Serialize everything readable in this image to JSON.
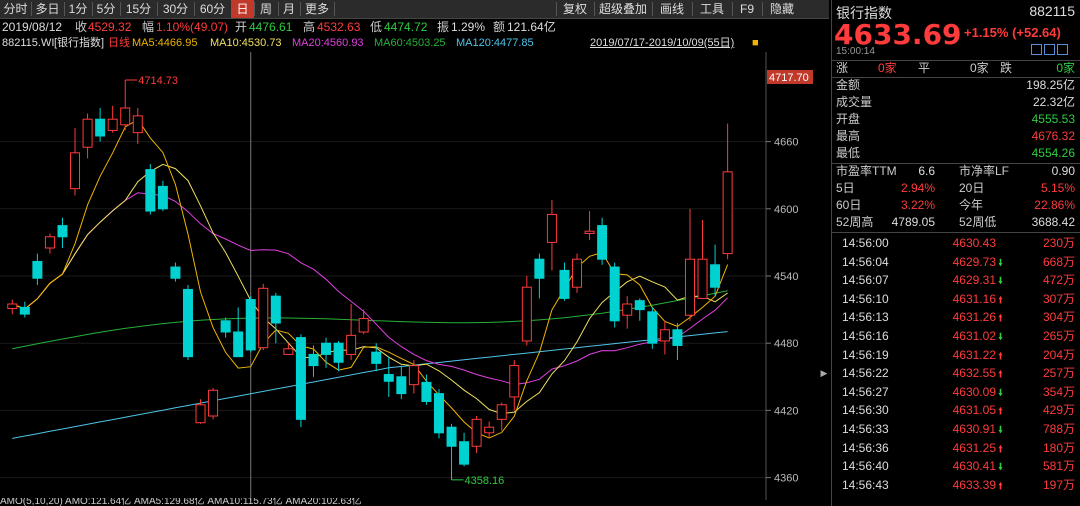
{
  "toolbar": {
    "left": [
      {
        "label": "分时",
        "active": false
      },
      {
        "label": "多日",
        "active": false
      },
      {
        "label": "1分",
        "active": false
      },
      {
        "label": "5分",
        "active": false
      },
      {
        "label": "15分",
        "active": false
      },
      {
        "label": "30分",
        "active": false
      },
      {
        "label": "60分",
        "active": false
      },
      {
        "label": "日",
        "active": true
      },
      {
        "label": "周",
        "active": false
      },
      {
        "label": "月",
        "active": false
      },
      {
        "label": "更多",
        "active": false
      }
    ],
    "right": [
      "复权",
      "超级叠加",
      "画线",
      "工具",
      "F9",
      "隐藏"
    ]
  },
  "info": {
    "date": "2019/08/12",
    "close_label": "收",
    "close": "4529.32",
    "amp_label": "幅",
    "amp": "1.10%(49.07)",
    "open_label": "开",
    "open": "4476.61",
    "high_label": "高",
    "high": "4532.63",
    "low_label": "低",
    "low": "4474.72",
    "swing_label": "振",
    "swing": "1.29%",
    "amount_label": "额",
    "amount": "121.64亿"
  },
  "ma_line": {
    "code": "882115.WI",
    "name": "[银行指数]",
    "period": "日线",
    "ma5": "MA5:4466.95",
    "ma10": "MA10:4530.73",
    "ma20": "MA20:4560.93",
    "ma60": "MA60:4503.25",
    "ma120": "MA120:4477.85",
    "range": "2019/07/17-2019/10/09(55日)"
  },
  "colors": {
    "up": "#ff3b3b",
    "down": "#00d2d2",
    "ma5": "#f0b400",
    "ma10": "#f0e060",
    "ma20": "#e040e0",
    "ma60": "#27b036",
    "ma120": "#4fc3e8",
    "accent": "#c0392b"
  },
  "chart_data": {
    "type": "candlestick",
    "ylim": [
      4340,
      4740
    ],
    "yticks": [
      "4660",
      "4600",
      "4540",
      "4480",
      "4420",
      "4360"
    ],
    "last_price_label": "4717.70",
    "max_label": "4714.73",
    "min_label": "4358.16",
    "candles": [
      [
        4511,
        4515,
        4506,
        4519
      ],
      [
        4512,
        4506,
        4503,
        4517
      ],
      [
        4553,
        4538,
        4532,
        4560
      ],
      [
        4565,
        4575,
        4560,
        4578
      ],
      [
        4585,
        4575,
        4565,
        4592
      ],
      [
        4618,
        4650,
        4612,
        4672
      ],
      [
        4655,
        4680,
        4645,
        4685
      ],
      [
        4680,
        4665,
        4660,
        4690
      ],
      [
        4670,
        4680,
        4668,
        4692
      ],
      [
        4675,
        4690,
        4670,
        4715
      ],
      [
        4668,
        4683,
        4658,
        4690
      ],
      [
        4635,
        4598,
        4595,
        4640
      ],
      [
        4620,
        4600,
        4598,
        4625
      ],
      [
        4548,
        4538,
        4535,
        4552
      ],
      [
        4528,
        4468,
        4465,
        4532
      ],
      [
        4409,
        4425,
        4408,
        4430
      ],
      [
        4415,
        4438,
        4412,
        4440
      ],
      [
        4500,
        4490,
        4485,
        4503
      ],
      [
        4490,
        4468,
        4468,
        4512
      ],
      [
        4519,
        4474,
        4472,
        4522
      ],
      [
        4476,
        4529,
        4474,
        4533
      ],
      [
        4522,
        4498,
        4480,
        4525
      ],
      [
        4470,
        4475,
        4470,
        4480
      ],
      [
        4485,
        4412,
        4405,
        4488
      ],
      [
        4470,
        4460,
        4450,
        4478
      ],
      [
        4480,
        4470,
        4458,
        4485
      ],
      [
        4480,
        4463,
        4455,
        4482
      ],
      [
        4470,
        4487,
        4465,
        4515
      ],
      [
        4490,
        4502,
        4488,
        4510
      ],
      [
        4472,
        4462,
        4455,
        4480
      ],
      [
        4452,
        4446,
        4432,
        4468
      ],
      [
        4450,
        4435,
        4430,
        4460
      ],
      [
        4443,
        4460,
        4435,
        4465
      ],
      [
        4445,
        4428,
        4425,
        4452
      ],
      [
        4435,
        4400,
        4395,
        4439
      ],
      [
        4405,
        4388,
        4358,
        4408
      ],
      [
        4392,
        4372,
        4370,
        4400
      ],
      [
        4388,
        4412,
        4382,
        4415
      ],
      [
        4400,
        4405,
        4395,
        4410
      ],
      [
        4412,
        4425,
        4402,
        4427
      ],
      [
        4432,
        4460,
        4420,
        4465
      ],
      [
        4482,
        4530,
        4478,
        4540
      ],
      [
        4555,
        4538,
        4520,
        4560
      ],
      [
        4570,
        4595,
        4545,
        4608
      ],
      [
        4545,
        4520,
        4518,
        4552
      ],
      [
        4530,
        4555,
        4525,
        4560
      ],
      [
        4578,
        4580,
        4572,
        4598
      ],
      [
        4585,
        4555,
        4550,
        4592
      ],
      [
        4548,
        4500,
        4494,
        4552
      ],
      [
        4505,
        4515,
        4493,
        4522
      ],
      [
        4518,
        4510,
        4500,
        4520
      ],
      [
        4508,
        4480,
        4475,
        4512
      ],
      [
        4482,
        4492,
        4470,
        4500
      ],
      [
        4492,
        4478,
        4465,
        4498
      ],
      [
        4505,
        4555,
        4500,
        4600
      ],
      [
        4520,
        4555,
        4520,
        4590
      ],
      [
        4550,
        4530,
        4522,
        4568
      ],
      [
        4560,
        4633,
        4555,
        4676
      ]
    ]
  },
  "bottom_strip": "AMO(5,10,20) AMO:121.64亿 AMA5:129.68亿 AMA10:115.73亿 AMA20:102.63亿",
  "right_panel": {
    "name": "银行指数",
    "code": "882115",
    "price": "4633.69",
    "change": "+1.15% (+52.64)",
    "time": "15:00:14",
    "breadth": {
      "up_label": "涨",
      "up": "0家",
      "flat_label": "平",
      "flat": "0家",
      "down_label": "跌",
      "down": "0家"
    },
    "stats": [
      {
        "label": "金额",
        "value": "198.25亿",
        "color": "white"
      },
      {
        "label": "成交量",
        "value": "22.32亿",
        "color": "white"
      },
      {
        "label": "开盘",
        "value": "4555.53",
        "color": "green"
      },
      {
        "label": "最高",
        "value": "4676.32",
        "color": "red"
      },
      {
        "label": "最低",
        "value": "4554.26",
        "color": "green"
      }
    ],
    "pe_label": "市盈率TTM",
    "pe": "6.6",
    "pb_label": "市净率LF",
    "pb": "0.90",
    "perf": [
      {
        "l1": "5日",
        "v1": "2.94%",
        "l2": "20日",
        "v2": "5.15%"
      },
      {
        "l1": "60日",
        "v1": "3.22%",
        "l2": "今年",
        "v2": "22.86%"
      }
    ],
    "w52h_label": "52周高",
    "w52h": "4789.05",
    "w52l_label": "52周低",
    "w52l": "3688.42",
    "ticks": [
      {
        "t": "14:56:00",
        "p": "4630.43",
        "d": "",
        "v": "230万"
      },
      {
        "t": "14:56:04",
        "p": "4629.73",
        "d": "down",
        "v": "668万"
      },
      {
        "t": "14:56:07",
        "p": "4629.31",
        "d": "down",
        "v": "472万"
      },
      {
        "t": "14:56:10",
        "p": "4631.16",
        "d": "up",
        "v": "307万"
      },
      {
        "t": "14:56:13",
        "p": "4631.26",
        "d": "up",
        "v": "304万"
      },
      {
        "t": "14:56:16",
        "p": "4631.02",
        "d": "down",
        "v": "265万"
      },
      {
        "t": "14:56:19",
        "p": "4631.22",
        "d": "up",
        "v": "204万"
      },
      {
        "t": "14:56:22",
        "p": "4632.55",
        "d": "up",
        "v": "257万"
      },
      {
        "t": "14:56:27",
        "p": "4630.09",
        "d": "down",
        "v": "354万"
      },
      {
        "t": "14:56:30",
        "p": "4631.05",
        "d": "up",
        "v": "429万"
      },
      {
        "t": "14:56:33",
        "p": "4630.91",
        "d": "down",
        "v": "788万"
      },
      {
        "t": "14:56:36",
        "p": "4631.25",
        "d": "up",
        "v": "180万"
      },
      {
        "t": "14:56:40",
        "p": "4630.41",
        "d": "down",
        "v": "581万"
      },
      {
        "t": "14:56:43",
        "p": "4633.39",
        "d": "up",
        "v": "197万"
      }
    ]
  }
}
